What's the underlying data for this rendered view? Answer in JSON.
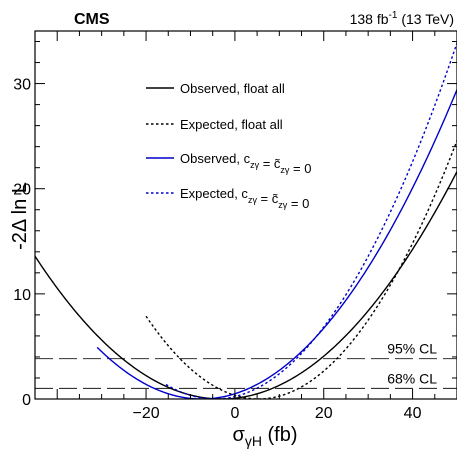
{
  "chart_data": {
    "type": "line",
    "header": {
      "experiment": "CMS",
      "lumi": "138 fb",
      "lumi_sup": "-1",
      "energy": " (13 TeV)"
    },
    "xlabel": {
      "main": "σ",
      "sub": "γH",
      "unit": " (fb)"
    },
    "ylabel": "-2Δ ln L",
    "xlim": [
      -45,
      50
    ],
    "ylim": [
      0,
      35
    ],
    "xticks": [
      -20,
      0,
      20,
      40
    ],
    "yticks": [
      0,
      10,
      20,
      30
    ],
    "grid": false,
    "legend_position": "top-left",
    "series": [
      {
        "name": "Observed, float all",
        "color": "#000000",
        "dashed": false,
        "min_x": -3,
        "k": 0.0077,
        "x_start": -45,
        "x_end": 50
      },
      {
        "name": "Expected, float all",
        "color": "#000000",
        "dashed": true,
        "min_x": 5.3,
        "k": 0.0123,
        "x_start": -20,
        "x_end": 50
      },
      {
        "name": "Observed, c_zγ = c̃_zγ = 0",
        "color": "#0000cc",
        "dashed": false,
        "min_x": -7.5,
        "k": 0.0089,
        "x_start": -31,
        "x_end": 50
      },
      {
        "name": "Expected, c_zγ = c̃_zγ = 0",
        "color": "#0000cc",
        "dashed": true,
        "min_x": -4.5,
        "k": 0.0114,
        "x_start": -15.5,
        "x_end": 50
      }
    ],
    "legend_labels": [
      {
        "text": "Observed, float all"
      },
      {
        "text": "Expected, float all"
      },
      {
        "pre": "Observed, c",
        "sub1": "zγ",
        "mid": " = c̃",
        "sub2": "zγ",
        "post": " = 0"
      },
      {
        "pre": "Expected, c",
        "sub1": "zγ",
        "mid": " = c̃",
        "sub2": "zγ",
        "post": " = 0"
      }
    ],
    "cl_lines": [
      {
        "label": "95% CL",
        "y": 3.84
      },
      {
        "label": "68% CL",
        "y": 1.0
      }
    ]
  }
}
